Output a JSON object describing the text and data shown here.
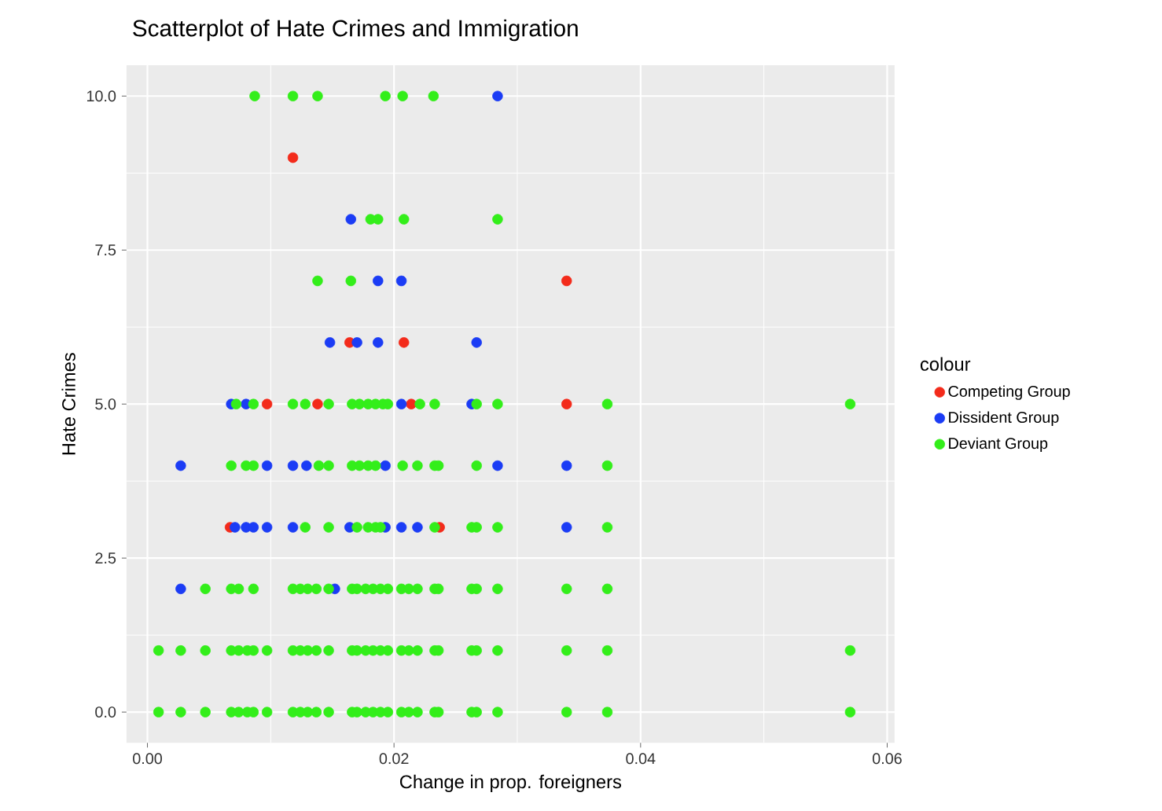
{
  "chart_data": {
    "type": "scatter",
    "title": "Scatterplot of Hate Crimes and Immigration",
    "xlabel": "Change in prop. foreigners",
    "ylabel": "Hate Crimes",
    "legend_title": "colour",
    "legend": "right",
    "grid": true,
    "marker": "circle",
    "xlim": [
      -0.0017,
      0.0606
    ],
    "ylim": [
      -0.5,
      10.5
    ],
    "xticks": [
      {
        "value": 0,
        "label": "0.00"
      },
      {
        "value": 0.02,
        "label": "0.02"
      },
      {
        "value": 0.04,
        "label": "0.04"
      },
      {
        "value": 0.06,
        "label": "0.06"
      }
    ],
    "yticks": [
      {
        "value": 0,
        "label": "0.0"
      },
      {
        "value": 2.5,
        "label": "2.5"
      },
      {
        "value": 5,
        "label": "5.0"
      },
      {
        "value": 7.5,
        "label": "7.5"
      },
      {
        "value": 10,
        "label": "10.0"
      }
    ],
    "series": [
      {
        "name": "Competing Group",
        "color": "#f32b1b",
        "x": [
          0.0118,
          0.034,
          0.0164,
          0.0208,
          0.0097,
          0.0138,
          0.0214,
          0.034,
          0.0067,
          0.0237
        ],
        "values": [
          9,
          7,
          6,
          6,
          5,
          5,
          5,
          5,
          3,
          3
        ]
      },
      {
        "name": "Dissident Group",
        "color": "#1b3cf5",
        "x": [
          0.0284,
          0.0165,
          0.0187,
          0.0206,
          0.0148,
          0.017,
          0.0187,
          0.0267,
          0.0068,
          0.008,
          0.0206,
          0.0263,
          0.0027,
          0.0097,
          0.0118,
          0.0129,
          0.0193,
          0.0284,
          0.034,
          0.0071,
          0.008,
          0.0086,
          0.0097,
          0.0118,
          0.0164,
          0.0193,
          0.0206,
          0.0219,
          0.034,
          0.0027,
          0.0152
        ],
        "values": [
          10,
          8,
          7,
          7,
          6,
          6,
          6,
          6,
          5,
          5,
          5,
          5,
          4,
          4,
          4,
          4,
          4,
          4,
          4,
          3,
          3,
          3,
          3,
          3,
          3,
          3,
          3,
          3,
          3,
          2,
          2
        ]
      },
      {
        "name": "Deviant Group",
        "color": "#33ee1a",
        "x": [
          0.0087,
          0.0118,
          0.0138,
          0.0193,
          0.0207,
          0.0232,
          0.0181,
          0.0187,
          0.0208,
          0.0284,
          0.0138,
          0.0165,
          0.0072,
          0.0086,
          0.0118,
          0.0128,
          0.0147,
          0.0166,
          0.0172,
          0.0179,
          0.0185,
          0.0191,
          0.0195,
          0.0221,
          0.0233,
          0.0267,
          0.0284,
          0.0373,
          0.057,
          0.0068,
          0.008,
          0.0086,
          0.0139,
          0.0147,
          0.0166,
          0.0172,
          0.0179,
          0.0185,
          0.0207,
          0.0219,
          0.0233,
          0.0236,
          0.0267,
          0.0373,
          0.0128,
          0.0147,
          0.017,
          0.0179,
          0.0185,
          0.0189,
          0.0233,
          0.0263,
          0.0267,
          0.0284,
          0.0373,
          0.0047,
          0.0068,
          0.0074,
          0.0086,
          0.0118,
          0.0124,
          0.013,
          0.0137,
          0.0147,
          0.0166,
          0.017,
          0.0177,
          0.0183,
          0.0189,
          0.0195,
          0.0206,
          0.0212,
          0.0219,
          0.0233,
          0.0236,
          0.0263,
          0.0267,
          0.0284,
          0.034,
          0.0373,
          0.0009,
          0.0027,
          0.0047,
          0.0068,
          0.0074,
          0.0081,
          0.0086,
          0.0097,
          0.0118,
          0.0124,
          0.013,
          0.0137,
          0.0147,
          0.0166,
          0.017,
          0.0177,
          0.0183,
          0.0189,
          0.0195,
          0.0206,
          0.0212,
          0.0219,
          0.0233,
          0.0236,
          0.0263,
          0.0267,
          0.0284,
          0.034,
          0.0373,
          0.057,
          0.0009,
          0.0027,
          0.0047,
          0.0068,
          0.0074,
          0.0081,
          0.0086,
          0.0097,
          0.0118,
          0.0124,
          0.013,
          0.0137,
          0.0147,
          0.0166,
          0.017,
          0.0177,
          0.0183,
          0.0189,
          0.0195,
          0.0206,
          0.0212,
          0.0219,
          0.0233,
          0.0236,
          0.0263,
          0.0267,
          0.0284,
          0.034,
          0.0373,
          0.057
        ],
        "values": [
          10,
          10,
          10,
          10,
          10,
          10,
          8,
          8,
          8,
          8,
          7,
          7,
          5,
          5,
          5,
          5,
          5,
          5,
          5,
          5,
          5,
          5,
          5,
          5,
          5,
          5,
          5,
          5,
          5,
          4,
          4,
          4,
          4,
          4,
          4,
          4,
          4,
          4,
          4,
          4,
          4,
          4,
          4,
          4,
          3,
          3,
          3,
          3,
          3,
          3,
          3,
          3,
          3,
          3,
          3,
          2,
          2,
          2,
          2,
          2,
          2,
          2,
          2,
          2,
          2,
          2,
          2,
          2,
          2,
          2,
          2,
          2,
          2,
          2,
          2,
          2,
          2,
          2,
          2,
          2,
          1,
          1,
          1,
          1,
          1,
          1,
          1,
          1,
          1,
          1,
          1,
          1,
          1,
          1,
          1,
          1,
          1,
          1,
          1,
          1,
          1,
          1,
          1,
          1,
          1,
          1,
          1,
          1,
          1,
          1,
          0,
          0,
          0,
          0,
          0,
          0,
          0,
          0,
          0,
          0,
          0,
          0,
          0,
          0,
          0,
          0,
          0,
          0,
          0,
          0,
          0,
          0,
          0,
          0,
          0,
          0,
          0,
          0,
          0,
          0
        ]
      }
    ]
  }
}
